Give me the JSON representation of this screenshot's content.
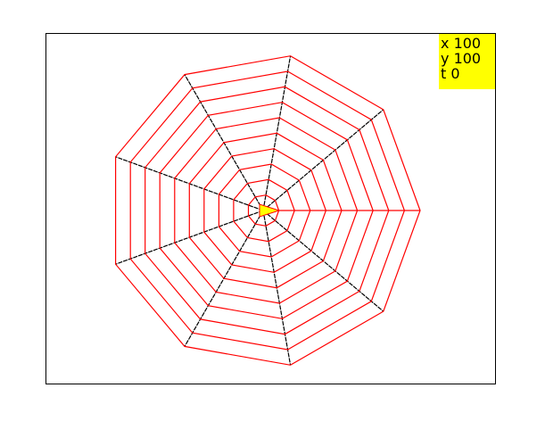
{
  "turtle": {
    "x_label": "x",
    "x_value": "100",
    "y_label": "y",
    "y_value": "100",
    "t_label": "t",
    "t_value": "0"
  },
  "web": {
    "spokes": 9,
    "rings": 10,
    "spoke_color": "#000000",
    "ring_color": "#ff0000",
    "turtle_color": "#ffff00",
    "status_bg": "#ffff00"
  }
}
